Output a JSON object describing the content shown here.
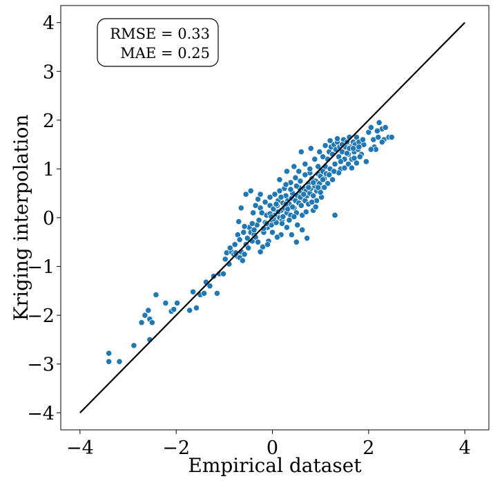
{
  "chart_data": {
    "type": "scatter",
    "title": "",
    "xlabel": "Empirical dataset",
    "ylabel": "Kriging interpolation",
    "xlim": [
      -4.4,
      4.5
    ],
    "ylim": [
      -4.35,
      4.35
    ],
    "xticks": [
      -4,
      -2,
      0,
      2,
      4
    ],
    "yticks": [
      -4,
      -3,
      -2,
      -1,
      0,
      1,
      2,
      3,
      4
    ],
    "xtick_labels": [
      "−4",
      "−2",
      "0",
      "2",
      "4"
    ],
    "ytick_labels": [
      "−4",
      "−3",
      "−2",
      "−1",
      "0",
      "1",
      "2",
      "3",
      "4"
    ],
    "identity_line": {
      "x": [
        -4,
        4
      ],
      "y": [
        -4,
        4
      ],
      "color": "#000000"
    },
    "annotation": {
      "line1": "RMSE = 0.33",
      "line2": "MAE = 0.25"
    },
    "marker_color": "#1f77b4",
    "points": [
      [
        -3.4,
        -2.78
      ],
      [
        -3.4,
        -2.95
      ],
      [
        -3.18,
        -2.95
      ],
      [
        -2.88,
        -2.62
      ],
      [
        -2.72,
        -2.15
      ],
      [
        -2.65,
        -2.0
      ],
      [
        -2.58,
        -1.9
      ],
      [
        -2.55,
        -2.08
      ],
      [
        -2.5,
        -2.15
      ],
      [
        -2.55,
        -2.5
      ],
      [
        -2.42,
        -1.58
      ],
      [
        -2.22,
        -1.75
      ],
      [
        -2.1,
        -1.92
      ],
      [
        -2.05,
        -1.88
      ],
      [
        -1.98,
        -1.75
      ],
      [
        -1.72,
        -1.9
      ],
      [
        -1.65,
        -1.52
      ],
      [
        -1.58,
        -1.85
      ],
      [
        -1.5,
        -1.58
      ],
      [
        -1.42,
        -1.55
      ],
      [
        -1.38,
        -1.32
      ],
      [
        -1.3,
        -1.4
      ],
      [
        -1.22,
        -1.2
      ],
      [
        -1.15,
        -1.55
      ],
      [
        -1.1,
        -1.15
      ],
      [
        -1.02,
        -1.15
      ],
      [
        -0.98,
        -0.85
      ],
      [
        -0.95,
        -0.72
      ],
      [
        -0.9,
        -0.95
      ],
      [
        -0.85,
        -0.7
      ],
      [
        -0.8,
        -0.75
      ],
      [
        -0.76,
        -0.72
      ],
      [
        -0.72,
        -0.8
      ],
      [
        -0.68,
        -0.82
      ],
      [
        -0.65,
        -0.7
      ],
      [
        -0.62,
        -0.88
      ],
      [
        -0.58,
        -0.75
      ],
      [
        -0.72,
        -0.35
      ],
      [
        -0.7,
        -0.08
      ],
      [
        -0.6,
        -0.3
      ],
      [
        -0.55,
        -0.55
      ],
      [
        -0.52,
        -0.42
      ],
      [
        -0.5,
        -0.62
      ],
      [
        -0.48,
        -0.2
      ],
      [
        -0.45,
        -0.3
      ],
      [
        -0.42,
        -0.48
      ],
      [
        -0.4,
        0.1
      ],
      [
        -0.38,
        -0.35
      ],
      [
        -0.35,
        -0.4
      ],
      [
        -0.32,
        -0.15
      ],
      [
        -0.3,
        -0.5
      ],
      [
        -0.28,
        -0.05
      ],
      [
        -0.25,
        0.2
      ],
      [
        -0.22,
        0.1
      ],
      [
        -0.2,
        -0.6
      ],
      [
        -0.18,
        -0.3
      ],
      [
        -0.15,
        -0.1
      ],
      [
        -0.12,
        0.05
      ],
      [
        -0.1,
        -0.2
      ],
      [
        -0.08,
        -0.48
      ],
      [
        -0.05,
        0.25
      ],
      [
        -0.02,
        -0.15
      ],
      [
        0.0,
        -0.05
      ],
      [
        0.02,
        0.18
      ],
      [
        0.05,
        0.05
      ],
      [
        0.08,
        -0.1
      ],
      [
        0.1,
        0.25
      ],
      [
        0.12,
        0.35
      ],
      [
        0.15,
        0.0
      ],
      [
        0.18,
        0.15
      ],
      [
        0.2,
        -0.05
      ],
      [
        0.22,
        0.3
      ],
      [
        0.25,
        0.2
      ],
      [
        0.28,
        0.45
      ],
      [
        0.3,
        0.1
      ],
      [
        0.32,
        0.35
      ],
      [
        0.35,
        0.28
      ],
      [
        0.38,
        0.05
      ],
      [
        0.4,
        0.4
      ],
      [
        0.42,
        0.5
      ],
      [
        0.45,
        0.2
      ],
      [
        0.48,
        0.35
      ],
      [
        0.5,
        0.1
      ],
      [
        0.52,
        0.45
      ],
      [
        0.55,
        0.3
      ],
      [
        0.58,
        0.55
      ],
      [
        0.6,
        0.25
      ],
      [
        0.62,
        0.4
      ],
      [
        0.65,
        0.6
      ],
      [
        0.68,
        0.35
      ],
      [
        0.7,
        0.55
      ],
      [
        0.72,
        0.45
      ],
      [
        0.75,
        0.7
      ],
      [
        0.78,
        0.5
      ],
      [
        0.8,
        0.6
      ],
      [
        0.82,
        0.8
      ],
      [
        0.85,
        0.45
      ],
      [
        0.88,
        0.65
      ],
      [
        0.9,
        0.75
      ],
      [
        0.92,
        0.55
      ],
      [
        0.95,
        0.9
      ],
      [
        0.98,
        0.7
      ],
      [
        1.0,
        0.85
      ],
      [
        1.02,
        0.6
      ],
      [
        1.05,
        0.95
      ],
      [
        1.08,
        0.8
      ],
      [
        1.1,
        1.05
      ],
      [
        1.12,
        0.9
      ],
      [
        1.15,
        1.2
      ],
      [
        1.18,
        1.35
      ],
      [
        1.2,
        1.0
      ],
      [
        1.22,
        1.45
      ],
      [
        1.25,
        1.3
      ],
      [
        1.28,
        1.5
      ],
      [
        1.3,
        1.1
      ],
      [
        1.32,
        1.4
      ],
      [
        1.35,
        1.55
      ],
      [
        1.38,
        1.25
      ],
      [
        1.4,
        1.45
      ],
      [
        1.42,
        1.0
      ],
      [
        1.45,
        1.35
      ],
      [
        1.48,
        1.6
      ],
      [
        1.5,
        1.2
      ],
      [
        1.52,
        1.45
      ],
      [
        1.55,
        1.55
      ],
      [
        1.58,
        1.3
      ],
      [
        1.6,
        1.65
      ],
      [
        1.62,
        1.45
      ],
      [
        1.65,
        1.2
      ],
      [
        1.68,
        1.55
      ],
      [
        1.7,
        1.35
      ],
      [
        1.72,
        1.5
      ],
      [
        1.75,
        1.65
      ],
      [
        1.78,
        1.4
      ],
      [
        1.8,
        1.55
      ],
      [
        1.85,
        1.3
      ],
      [
        1.9,
        1.5
      ],
      [
        2.0,
        1.75
      ],
      [
        2.05,
        1.85
      ],
      [
        2.1,
        1.6
      ],
      [
        2.12,
        1.45
      ],
      [
        2.15,
        1.4
      ],
      [
        2.2,
        1.65
      ],
      [
        2.22,
        1.95
      ],
      [
        2.28,
        1.82
      ],
      [
        2.32,
        1.6
      ],
      [
        2.35,
        1.85
      ],
      [
        2.42,
        1.65
      ],
      [
        2.48,
        1.65
      ],
      [
        2.05,
        1.4
      ],
      [
        0.3,
        0.95
      ],
      [
        0.45,
        1.05
      ],
      [
        0.55,
        0.95
      ],
      [
        0.68,
        1.1
      ],
      [
        0.78,
        0.92
      ],
      [
        0.88,
        1.2
      ],
      [
        0.95,
        1.05
      ],
      [
        1.05,
        1.25
      ],
      [
        0.6,
        1.35
      ],
      [
        0.8,
        1.42
      ],
      [
        0.85,
        0.15
      ],
      [
        0.62,
        -0.25
      ],
      [
        0.72,
        -0.42
      ],
      [
        0.5,
        -0.5
      ],
      [
        0.4,
        -0.35
      ],
      [
        0.3,
        -0.2
      ],
      [
        0.18,
        -0.35
      ],
      [
        0.1,
        -0.4
      ],
      [
        0.0,
        -0.3
      ],
      [
        -0.1,
        -0.55
      ],
      [
        -0.25,
        -0.7
      ],
      [
        1.3,
        0.05
      ],
      [
        0.25,
        0.6
      ],
      [
        0.15,
        0.55
      ],
      [
        0.05,
        0.48
      ],
      [
        -0.05,
        0.42
      ],
      [
        -0.15,
        0.32
      ],
      [
        -0.3,
        0.38
      ],
      [
        -0.45,
        0.55
      ],
      [
        -0.55,
        0.48
      ],
      [
        -0.65,
        0.2
      ],
      [
        -0.35,
        0.25
      ],
      [
        -0.25,
        0.48
      ],
      [
        0.38,
        0.72
      ],
      [
        0.48,
        0.82
      ],
      [
        0.58,
        0.75
      ],
      [
        0.68,
        0.88
      ],
      [
        0.78,
        1.0
      ],
      [
        0.98,
        1.35
      ],
      [
        1.1,
        1.48
      ],
      [
        1.2,
        1.58
      ],
      [
        1.35,
        1.62
      ],
      [
        1.45,
        1.5
      ],
      [
        1.6,
        1.42
      ],
      [
        1.7,
        1.22
      ],
      [
        1.82,
        1.25
      ],
      [
        1.95,
        1.15
      ],
      [
        0.15,
        0.78
      ],
      [
        0.28,
        0.68
      ],
      [
        0.55,
        0.62
      ],
      [
        0.75,
        0.28
      ],
      [
        0.92,
        0.35
      ],
      [
        1.02,
        0.42
      ],
      [
        1.15,
        0.7
      ],
      [
        1.25,
        0.78
      ],
      [
        1.38,
        0.92
      ],
      [
        1.5,
        1.02
      ],
      [
        1.58,
        1.1
      ],
      [
        1.65,
        1.02
      ],
      [
        1.75,
        1.12
      ],
      [
        0.2,
        -0.12
      ],
      [
        0.35,
        -0.05
      ],
      [
        0.45,
        0.02
      ],
      [
        0.52,
        -0.15
      ],
      [
        0.62,
        0.05
      ],
      [
        0.7,
        0.12
      ],
      [
        0.82,
        0.32
      ],
      [
        0.9,
        0.22
      ],
      [
        1.0,
        0.52
      ],
      [
        1.08,
        0.62
      ],
      [
        -0.05,
        0.08
      ],
      [
        0.02,
        -0.02
      ],
      [
        0.12,
        0.12
      ],
      [
        0.22,
        0.02
      ],
      [
        0.32,
        0.18
      ],
      [
        0.42,
        0.22
      ],
      [
        -0.18,
        -0.22
      ],
      [
        -0.12,
        -0.12
      ],
      [
        -0.02,
        0.02
      ],
      [
        0.08,
        0.28
      ],
      [
        0.18,
        0.42
      ],
      [
        0.28,
        0.28
      ],
      [
        0.38,
        0.58
      ],
      [
        0.5,
        0.65
      ],
      [
        0.58,
        0.42
      ],
      [
        0.65,
        0.48
      ],
      [
        0.75,
        0.62
      ],
      [
        0.85,
        0.72
      ],
      [
        0.95,
        0.62
      ],
      [
        1.05,
        0.78
      ],
      [
        1.18,
        0.88
      ],
      [
        1.28,
        0.95
      ],
      [
        1.42,
        1.15
      ],
      [
        1.55,
        1.32
      ],
      [
        1.68,
        1.42
      ],
      [
        1.8,
        1.45
      ],
      [
        1.88,
        1.6
      ],
      [
        2.18,
        1.78
      ],
      [
        2.28,
        1.55
      ],
      [
        -0.42,
        -0.12
      ],
      [
        -0.38,
        -0.25
      ],
      [
        -0.58,
        -0.18
      ],
      [
        -0.68,
        -0.45
      ],
      [
        -0.78,
        -0.55
      ],
      [
        -0.88,
        -0.62
      ]
    ]
  }
}
